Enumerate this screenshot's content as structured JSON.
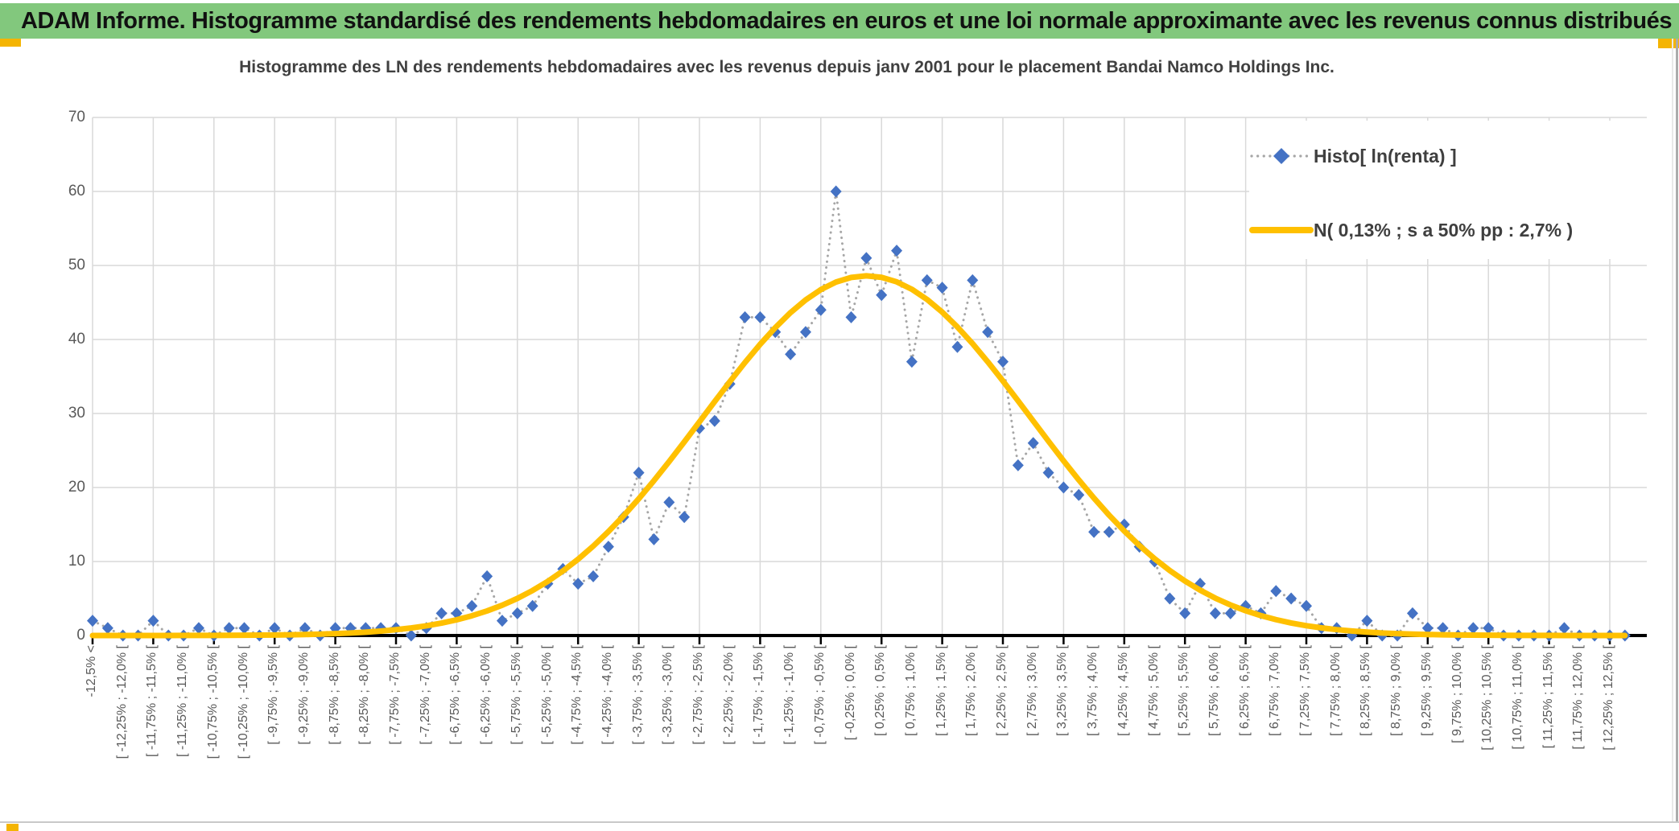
{
  "banner": {
    "text": "ADAM Informe. Histogramme standardisé des rendements hebdomadaires en euros et une loi normale approximante avec les revenus connus distribués"
  },
  "chart_data": {
    "type": "line",
    "title": "Histogramme des LN des rendements hebdomadaires avec les revenus depuis janv 2001 pour le placement Bandai Namco Holdings Inc.",
    "bins_total": 102,
    "bin_width_pct": 0.25,
    "x_first_bin_midpoint_pct": -12.625,
    "x_label_interval": 2,
    "ylim": [
      0,
      70
    ],
    "yticks": [
      0,
      10,
      20,
      30,
      40,
      50,
      60,
      70
    ],
    "grid": true,
    "legend_position": "upper-right",
    "categories": [
      "-12,5% <",
      "[ -12,25% ; -12,0% [",
      "[ -11,75% ; -11,5% [",
      "[ -11,25% ; -11,0% [",
      "[ -10,75% ; -10,5% [",
      "[ -10,25% ; -10,0% [",
      "[ -9,75% ; -9,5% [",
      "[ -9,25% ; -9,0% [",
      "[ -8,75% ; -8,5% [",
      "[ -8,25% ; -8,0% [",
      "[ -7,75% ; -7,5% [",
      "[ -7,25% ; -7,0% [",
      "[ -6,75% ; -6,5% [",
      "[ -6,25% ; -6,0% [",
      "[ -5,75% ; -5,5% [",
      "[ -5,25% ; -5,0% [",
      "[ -4,75% ; -4,5% [",
      "[ -4,25% ; -4,0% [",
      "[ -3,75% ; -3,5% [",
      "[ -3,25% ; -3,0% [",
      "[ -2,75% ; -2,5% [",
      "[ -2,25% ; -2,0% [",
      "[ -1,75% ; -1,5% [",
      "[ -1,25% ; -1,0% [",
      "[ -0,75% ; -0,5% [",
      "[ -0,25% ; 0,0% [",
      "[ 0,25% ; 0,5% [",
      "[ 0,75% ; 1,0% [",
      "[ 1,25% ; 1,5% [",
      "[ 1,75% ; 2,0% [",
      "[ 2,25% ; 2,5% [",
      "[ 2,75% ; 3,0% [",
      "[ 3,25% ; 3,5% [",
      "[ 3,75% ; 4,0% [",
      "[ 4,25% ; 4,5% [",
      "[ 4,75% ; 5,0% [",
      "[ 5,25% ; 5,5% [",
      "[ 5,75% ; 6,0% [",
      "[ 6,25% ; 6,5% [",
      "[ 6,75% ; 7,0% [",
      "[ 7,25% ; 7,5% [",
      "[ 7,75% ; 8,0% [",
      "[ 8,25% ; 8,5% [",
      "[ 8,75% ; 9,0% [",
      "[ 9,25% ; 9,5% [",
      "[ 9,75% ; 10,0% [",
      "[ 10,25% ; 10,5% [",
      "[ 10,75% ; 11,0% [",
      "[ 11,25% ; 11,5% [",
      "[ 11,75% ; 12,0% [",
      "[ 12,25% ; 12,5% ["
    ],
    "series": [
      {
        "name": "Histo[ ln(renta) ]",
        "type": "line-markers",
        "marker": "diamond",
        "color": "#4472C4",
        "line_color": "#A6A6A6",
        "line_style": "dotted",
        "values": [
          2,
          1,
          0,
          0,
          2,
          0,
          0,
          1,
          0,
          1,
          1,
          0,
          1,
          0,
          1,
          0,
          1,
          1,
          1,
          1,
          1,
          0,
          1,
          3,
          3,
          4,
          8,
          2,
          3,
          4,
          7,
          9,
          7,
          8,
          12,
          16,
          22,
          13,
          18,
          16,
          28,
          29,
          34,
          43,
          43,
          41,
          38,
          41,
          44,
          60,
          43,
          51,
          46,
          52,
          37,
          48,
          47,
          39,
          48,
          41,
          37,
          23,
          26,
          22,
          20,
          19,
          14,
          14,
          15,
          12,
          10,
          5,
          3,
          7,
          3,
          3,
          4,
          3,
          6,
          5,
          4,
          1,
          1,
          0,
          2,
          0,
          0,
          3,
          1,
          1,
          0,
          1,
          1,
          0,
          0,
          0,
          0,
          1,
          0,
          0,
          0,
          0
        ]
      },
      {
        "name": "N( 0,13% ; s a 50% pp : 2,7% )",
        "type": "normal-curve",
        "color": "#FFC000",
        "normal": {
          "mean_pct": 0.13,
          "sigma_pct": 2.7,
          "peak": 48.6
        }
      }
    ]
  }
}
